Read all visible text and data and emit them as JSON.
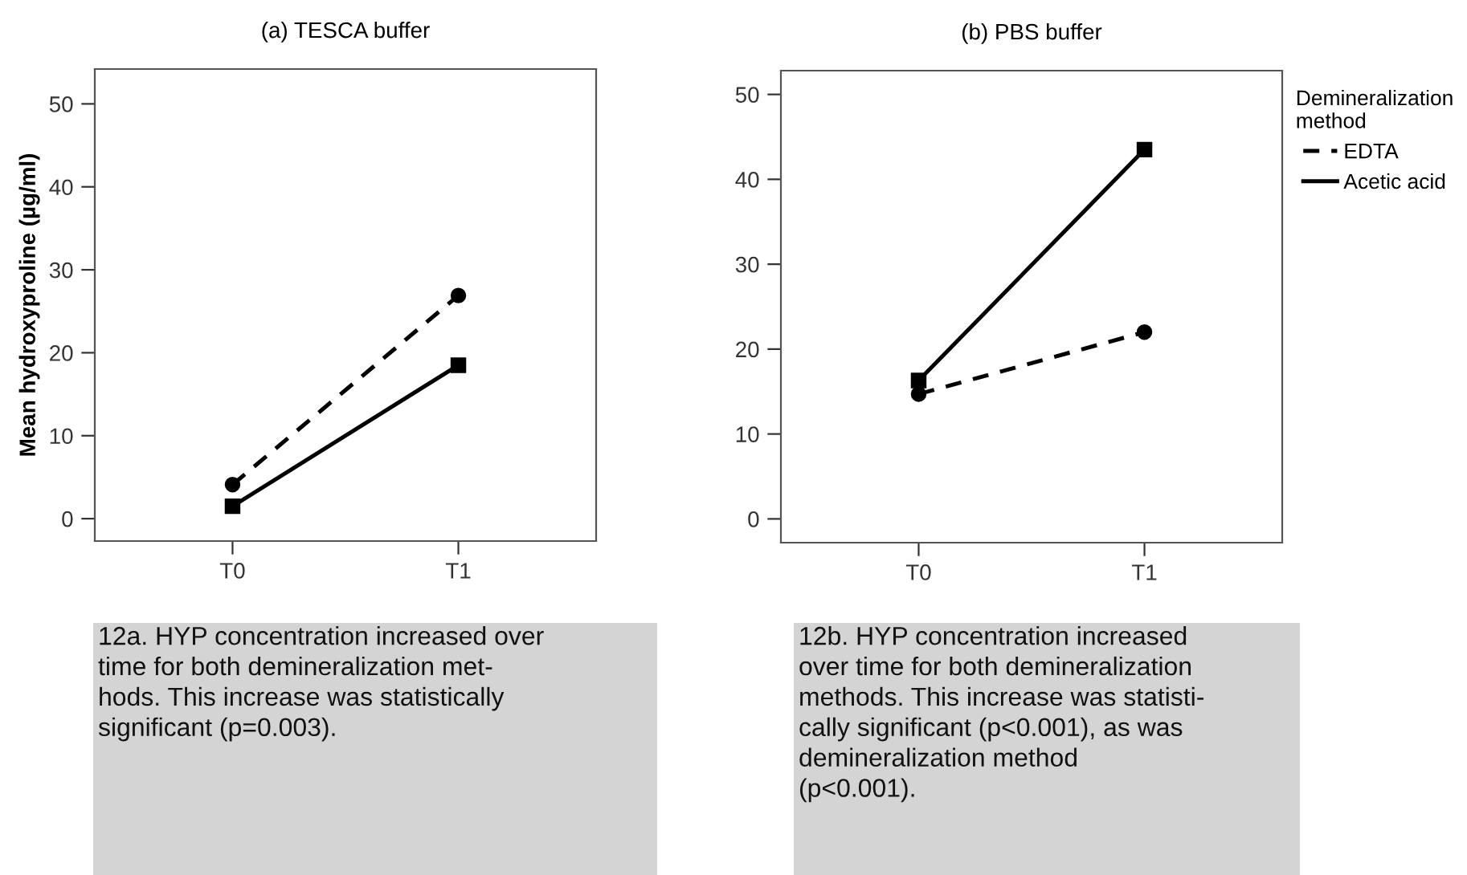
{
  "chart_data": [
    {
      "type": "line",
      "title": "(a) TESCA buffer",
      "ylabel": "Mean hydroxyproline (µg/ml)",
      "categories": [
        "T0",
        "T1"
      ],
      "ylim": [
        -2.7,
        54.2
      ],
      "yticks": [
        0,
        10,
        20,
        30,
        40,
        50
      ],
      "grid": false,
      "legend": false,
      "series": [
        {
          "color": "#000000",
          "values": [
            4.1,
            26.9
          ],
          "marker": "circle",
          "line_style": "dashed"
        },
        {
          "color": "#000000",
          "values": [
            1.5,
            18.5
          ],
          "marker": "square",
          "line_style": "solid"
        }
      ],
      "annotations": [
        "12a. HYP concentration increased over\ntime for both demineralization met-\nhods. This increase was statistically\nsignificant (p=0.003)."
      ]
    },
    {
      "type": "line",
      "title": "(b) PBS buffer",
      "categories": [
        "T0",
        "T1"
      ],
      "ylim": [
        -2.8,
        52.8
      ],
      "yticks": [
        0,
        10,
        20,
        30,
        40,
        50
      ],
      "grid": false,
      "legend": "right",
      "legend_title": "Demineralization\nmethod",
      "series": [
        {
          "name": "EDTA",
          "color": "#000000",
          "values": [
            14.7,
            22.0
          ],
          "marker": "circle",
          "line_style": "dashed"
        },
        {
          "name": "Acetic acid",
          "color": "#000000",
          "values": [
            16.3,
            43.5
          ],
          "marker": "square",
          "line_style": "solid"
        }
      ],
      "annotations": [
        "12b. HYP concentration increased\nover time for both demineralization\nmethods. This increase was statisti-\ncally significant (p<0.001), as was\ndemineralization method\n(p<0.001)."
      ]
    }
  ]
}
